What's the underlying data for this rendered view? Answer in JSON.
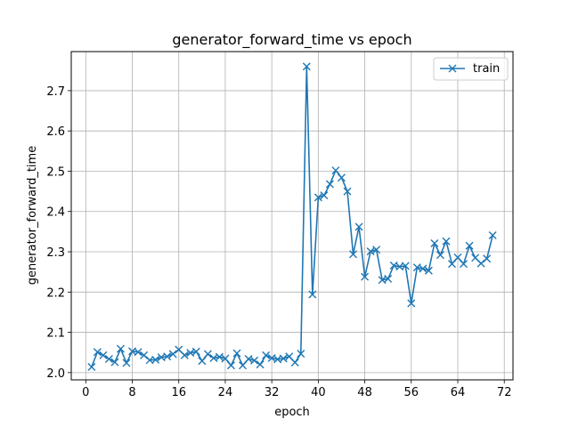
{
  "chart_data": {
    "type": "line",
    "title": "generator_forward_time vs epoch",
    "xlabel": "epoch",
    "ylabel": "generator_forward_time",
    "xlim": [
      -2.5,
      73.5
    ],
    "ylim": [
      1.982,
      2.797
    ],
    "xticks": [
      0,
      8,
      16,
      24,
      32,
      40,
      48,
      56,
      64,
      72
    ],
    "yticks": [
      2.0,
      2.1,
      2.2,
      2.3,
      2.4,
      2.5,
      2.6,
      2.7
    ],
    "grid": true,
    "legend_position": "upper right",
    "series": [
      {
        "name": "train",
        "color": "#1f77b4",
        "marker": "x",
        "x": [
          1,
          2,
          3,
          4,
          5,
          6,
          7,
          8,
          9,
          10,
          11,
          12,
          13,
          14,
          15,
          16,
          17,
          18,
          19,
          20,
          21,
          22,
          23,
          24,
          25,
          26,
          27,
          28,
          29,
          30,
          31,
          32,
          33,
          34,
          35,
          36,
          37,
          38,
          39,
          40,
          41,
          42,
          43,
          44,
          45,
          46,
          47,
          48,
          49,
          50,
          51,
          52,
          53,
          54,
          55,
          56,
          57,
          58,
          59,
          60,
          61,
          62,
          63,
          64,
          65,
          66,
          67,
          68,
          69,
          70
        ],
        "y": [
          2.014,
          2.051,
          2.043,
          2.034,
          2.026,
          2.059,
          2.024,
          2.053,
          2.051,
          2.043,
          2.031,
          2.032,
          2.038,
          2.04,
          2.046,
          2.057,
          2.043,
          2.049,
          2.052,
          2.029,
          2.046,
          2.036,
          2.039,
          2.035,
          2.018,
          2.048,
          2.018,
          2.034,
          2.03,
          2.02,
          2.043,
          2.036,
          2.033,
          2.035,
          2.04,
          2.025,
          2.047,
          2.76,
          2.194,
          2.435,
          2.44,
          2.468,
          2.502,
          2.484,
          2.45,
          2.294,
          2.362,
          2.238,
          2.301,
          2.305,
          2.23,
          2.233,
          2.266,
          2.263,
          2.265,
          2.172,
          2.261,
          2.258,
          2.253,
          2.321,
          2.292,
          2.326,
          2.27,
          2.286,
          2.27,
          2.315,
          2.285,
          2.271,
          2.283,
          2.341
        ]
      }
    ]
  }
}
